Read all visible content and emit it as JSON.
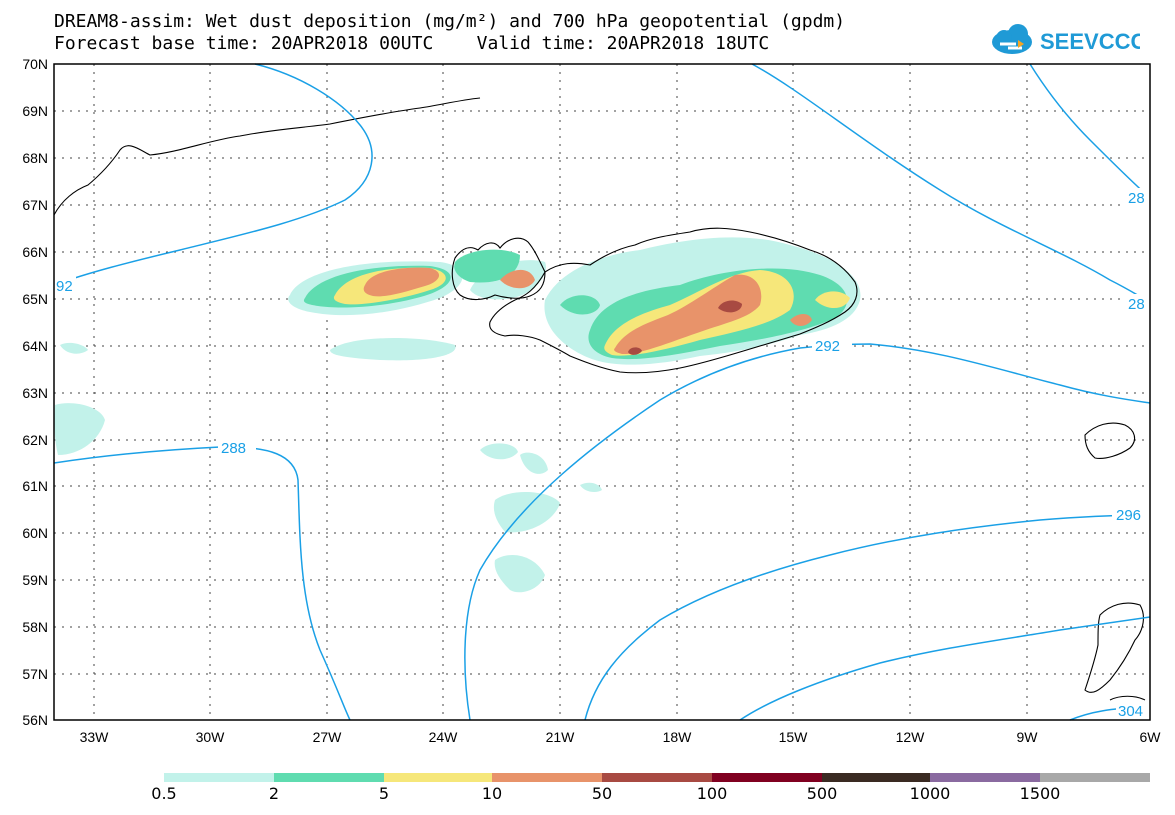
{
  "title": {
    "line1": "DREAM8-assim: Wet dust deposition (mg/m²) and 700 hPa geopotential (gpdm)",
    "line2": "Forecast base time: 20APR2018 00UTC    Valid time: 20APR2018 18UTC"
  },
  "logo": {
    "text": "SEEVCCC",
    "icon": "cloud-icon",
    "color": "#1f9ad6"
  },
  "axes": {
    "lat_labels": [
      "70N",
      "69N",
      "68N",
      "67N",
      "66N",
      "65N",
      "64N",
      "63N",
      "62N",
      "61N",
      "60N",
      "59N",
      "58N",
      "57N",
      "56N"
    ],
    "lon_labels": [
      "33W",
      "30W",
      "27W",
      "24W",
      "21W",
      "18W",
      "15W",
      "12W",
      "9W",
      "6W"
    ]
  },
  "contours": {
    "color": "#1aa0e6",
    "labels": [
      "92",
      "288",
      "292",
      "296",
      "28",
      "28",
      "304"
    ]
  },
  "colorbar": {
    "labels": [
      "0.5",
      "2",
      "5",
      "10",
      "50",
      "100",
      "500",
      "1000",
      "1500"
    ],
    "colors": [
      "#c2f2ea",
      "#5fdcb0",
      "#f6e77a",
      "#e8936a",
      "#a84a42",
      "#800020",
      "#3a2a22",
      "#8a6aa0",
      "#a8a8a8"
    ]
  }
}
